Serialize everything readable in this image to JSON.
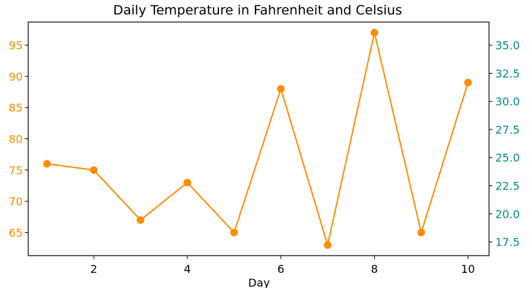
{
  "chart_data": {
    "type": "line",
    "title": "Daily Temperature in Fahrenheit and Celsius",
    "xlabel": "Day",
    "ylabel": "",
    "y2label": "",
    "x": [
      1,
      2,
      3,
      4,
      5,
      6,
      7,
      8,
      9,
      10
    ],
    "series": [
      {
        "values": [
          76,
          75,
          67,
          73,
          65,
          88,
          63,
          97,
          65,
          89
        ],
        "color": "#ff8c00",
        "marker": "circle",
        "axis": "left"
      }
    ],
    "xlim": [
      0.6,
      10.45
    ],
    "ylim": [
      61.3,
      98.7
    ],
    "y2lim": [
      16.28,
      37.06
    ],
    "x_ticks": [
      2,
      4,
      6,
      8,
      10
    ],
    "y_ticks": [
      65,
      70,
      75,
      80,
      85,
      90,
      95
    ],
    "y2_ticks": [
      17.5,
      20.0,
      22.5,
      25.0,
      27.5,
      30.0,
      32.5,
      35.0
    ],
    "y_tick_color": "#ff8c00",
    "y2_tick_color": "#008b8b",
    "grid": false,
    "legend": "none"
  }
}
